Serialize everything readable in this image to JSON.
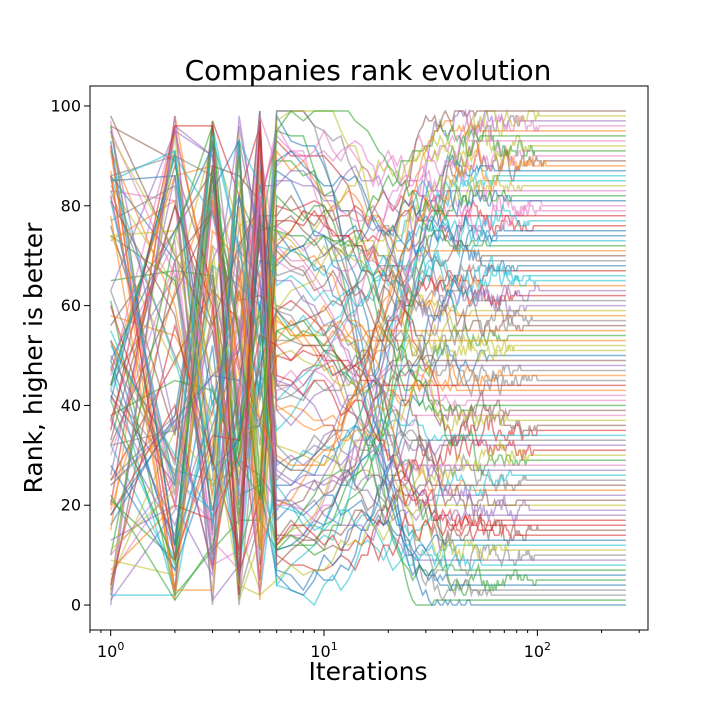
{
  "chart_data": {
    "type": "line",
    "title": "Companies rank evolution",
    "xlabel": "Iterations",
    "ylabel": "Rank, higher is better",
    "xscale": "log",
    "xlim": [
      0.8,
      330
    ],
    "ylim": [
      -5,
      104
    ],
    "grid": false,
    "legend": "none",
    "x_ticks": [
      {
        "base": "10",
        "exp": "0",
        "value": 1
      },
      {
        "base": "10",
        "exp": "1",
        "value": 10
      },
      {
        "base": "10",
        "exp": "2",
        "value": 100
      }
    ],
    "y_ticks": [
      {
        "label": "0",
        "value": 0
      },
      {
        "label": "20",
        "value": 20
      },
      {
        "label": "40",
        "value": 40
      },
      {
        "label": "60",
        "value": 60
      },
      {
        "label": "80",
        "value": 80
      },
      {
        "label": "100",
        "value": 100
      }
    ],
    "series_count": 100,
    "iterations": [
      1,
      260
    ],
    "rank_range": [
      0,
      99
    ],
    "palette": [
      "#1f77b4",
      "#ff7f0e",
      "#2ca02c",
      "#d62728",
      "#9467bd",
      "#8c564b",
      "#e377c2",
      "#7f7f7f",
      "#bcbd22",
      "#17becf"
    ]
  }
}
